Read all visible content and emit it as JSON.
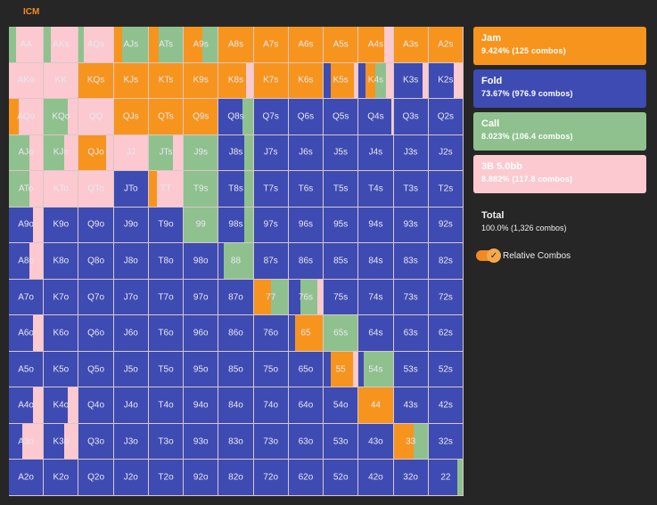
{
  "tab_label": "ICM",
  "colors": {
    "jam": "#f7941d",
    "fold": "#3e4bb2",
    "call": "#8fc18e",
    "three_bet": "#fbc9cf"
  },
  "legend": [
    {
      "key": "jam",
      "name": "Jam",
      "value": "9.424% (125 combos)"
    },
    {
      "key": "fold",
      "name": "Fold",
      "value": "73.67% (976.9 combos)"
    },
    {
      "key": "call",
      "name": "Call",
      "value": "8.023% (106.4 combos)"
    },
    {
      "key": "three_bet",
      "name": "3B 5.0bb",
      "value": "8.882% (117.8 combos)"
    }
  ],
  "total": {
    "name": "Total",
    "value": "100.0% (1,326 combos)"
  },
  "toggle": {
    "label": "Relative Combos",
    "checked": true
  },
  "hand_rows": [
    [
      "AA",
      "AKs",
      "AQs",
      "AJs",
      "ATs",
      "A9s",
      "A8s",
      "A7s",
      "A6s",
      "A5s",
      "A4s",
      "A3s",
      "A2s"
    ],
    [
      "AKo",
      "KK",
      "KQs",
      "KJs",
      "KTs",
      "K9s",
      "K8s",
      "K7s",
      "K6s",
      "K5s",
      "K4s",
      "K3s",
      "K2s"
    ],
    [
      "AQo",
      "KQo",
      "QQ",
      "QJs",
      "QTs",
      "Q9s",
      "Q8s",
      "Q7s",
      "Q6s",
      "Q5s",
      "Q4s",
      "Q3s",
      "Q2s"
    ],
    [
      "AJo",
      "KJo",
      "QJo",
      "JJ",
      "JTs",
      "J9s",
      "J8s",
      "J7s",
      "J6s",
      "J5s",
      "J4s",
      "J3s",
      "J2s"
    ],
    [
      "ATo",
      "KTo",
      "QTo",
      "JTo",
      "TT",
      "T9s",
      "T8s",
      "T7s",
      "T6s",
      "T5s",
      "T4s",
      "T3s",
      "T2s"
    ],
    [
      "A9o",
      "K9o",
      "Q9o",
      "J9o",
      "T9o",
      "99",
      "98s",
      "97s",
      "96s",
      "95s",
      "94s",
      "93s",
      "92s"
    ],
    [
      "A8o",
      "K8o",
      "Q8o",
      "J8o",
      "T8o",
      "98o",
      "88",
      "87s",
      "86s",
      "85s",
      "84s",
      "83s",
      "82s"
    ],
    [
      "A7o",
      "K7o",
      "Q7o",
      "J7o",
      "T7o",
      "97o",
      "87o",
      "77",
      "76s",
      "75s",
      "74s",
      "73s",
      "72s"
    ],
    [
      "A6o",
      "K6o",
      "Q6o",
      "J6o",
      "T6o",
      "96o",
      "86o",
      "76o",
      "65",
      "65s",
      "64s",
      "63s",
      "62s"
    ],
    [
      "A5o",
      "K5o",
      "Q5o",
      "J5o",
      "T5o",
      "95o",
      "85o",
      "75o",
      "65o",
      "55",
      "54s",
      "53s",
      "52s"
    ],
    [
      "A4o",
      "K4o",
      "Q4o",
      "J4o",
      "T4o",
      "94o",
      "84o",
      "74o",
      "64o",
      "54o",
      "44",
      "43s",
      "42s"
    ],
    [
      "A3o",
      "K3o",
      "Q3o",
      "J3o",
      "T3o",
      "93o",
      "83o",
      "73o",
      "63o",
      "53o",
      "43o",
      "33",
      "32s"
    ],
    [
      "A2o",
      "K2o",
      "Q2o",
      "J2o",
      "T2o",
      "92o",
      "82o",
      "72o",
      "62o",
      "52o",
      "42o",
      "32o",
      "22"
    ]
  ],
  "hand_mix": {
    "AA": {
      "call": 0.2,
      "three_bet": 0.8
    },
    "AKs": {
      "call": 0.2,
      "three_bet": 0.8
    },
    "AQs": {
      "call": 0.15,
      "three_bet": 0.85
    },
    "AJs": {
      "jam": 0.25,
      "call": 0.75
    },
    "ATs": {
      "jam": 0.3,
      "call": 0.7
    },
    "A9s": {
      "jam": 0.55,
      "call": 0.45
    },
    "A8s": {
      "jam": 1
    },
    "A7s": {
      "jam": 1
    },
    "A6s": {
      "jam": 1
    },
    "A5s": {
      "jam": 1
    },
    "A4s": {
      "jam": 0.75,
      "three_bet": 0.25
    },
    "A3s": {
      "jam": 1
    },
    "A2s": {
      "jam": 1
    },
    "AKo": {
      "three_bet": 1
    },
    "KK": {
      "three_bet": 1
    },
    "KQs": {
      "jam": 1
    },
    "KJs": {
      "jam": 1
    },
    "KTs": {
      "jam": 1
    },
    "K9s": {
      "jam": 1
    },
    "K8s": {
      "jam": 0.8,
      "three_bet": 0.2
    },
    "K7s": {
      "jam": 1
    },
    "K6s": {
      "jam": 1
    },
    "K5s": {
      "jam": 0.7,
      "fold": 0.2,
      "three_bet": 0.1
    },
    "K4s": {
      "fold": 0.2,
      "jam": 0.3,
      "call": 0.3,
      "three_bet": 0.2
    },
    "K3s": {
      "fold": 0.85,
      "three_bet": 0.15
    },
    "K2s": {
      "fold": 0.75,
      "three_bet": 0.25
    },
    "AQo": {
      "jam": 0.3,
      "three_bet": 0.7
    },
    "KQo": {
      "three_bet": 0.3,
      "call": 0.7
    },
    "QQ": {
      "three_bet": 1
    },
    "QJs": {
      "jam": 1
    },
    "QTs": {
      "jam": 1
    },
    "Q9s": {
      "jam": 1
    },
    "Q8s": {
      "fold": 0.7,
      "call": 0.3
    },
    "Q7s": {
      "fold": 1
    },
    "Q6s": {
      "fold": 1
    },
    "Q5s": {
      "fold": 1
    },
    "Q4s": {
      "fold": 0.95,
      "three_bet": 0.05
    },
    "Q3s": {
      "fold": 1
    },
    "Q2s": {
      "fold": 1
    },
    "AJo": {
      "call": 0.6,
      "three_bet": 0.4
    },
    "KJo": {
      "call": 0.6,
      "three_bet": 0.4
    },
    "QJo": {
      "jam": 0.8,
      "three_bet": 0.2
    },
    "JJ": {
      "three_bet": 1
    },
    "JTs": {
      "call": 0.7,
      "three_bet": 0.3
    },
    "J9s": {
      "call": 1
    },
    "J8s": {
      "fold": 0.75,
      "call": 0.25
    },
    "J7s": {
      "fold": 1
    },
    "J6s": {
      "fold": 1
    },
    "J5s": {
      "fold": 1
    },
    "J4s": {
      "fold": 1
    },
    "J3s": {
      "fold": 1
    },
    "J2s": {
      "fold": 1
    },
    "ATo": {
      "call": 0.6,
      "three_bet": 0.4
    },
    "KTo": {
      "three_bet": 1
    },
    "QTo": {
      "three_bet": 1
    },
    "JTo": {
      "fold": 1
    },
    "TT": {
      "jam": 0.25,
      "three_bet": 0.75
    },
    "T9s": {
      "call": 1
    },
    "T8s": {
      "fold": 0.75,
      "call": 0.25
    },
    "T7s": {
      "fold": 1
    },
    "T6s": {
      "fold": 1
    },
    "T5s": {
      "fold": 1
    },
    "T4s": {
      "fold": 1
    },
    "T3s": {
      "fold": 1
    },
    "T2s": {
      "fold": 1
    },
    "A9o": {
      "fold": 0.7,
      "three_bet": 0.3
    },
    "K9o": {
      "fold": 1
    },
    "Q9o": {
      "fold": 1
    },
    "J9o": {
      "fold": 1
    },
    "T9o": {
      "fold": 1
    },
    "99": {
      "call": 1
    },
    "98s": {
      "fold": 0.75,
      "call": 0.25
    },
    "97s": {
      "fold": 1
    },
    "96s": {
      "fold": 1
    },
    "95s": {
      "fold": 1
    },
    "94s": {
      "fold": 1
    },
    "93s": {
      "fold": 1
    },
    "92s": {
      "fold": 1
    },
    "A8o": {
      "fold": 0.6,
      "three_bet": 0.4
    },
    "K8o": {
      "fold": 1
    },
    "Q8o": {
      "fold": 1
    },
    "J8o": {
      "fold": 1
    },
    "T8o": {
      "fold": 1
    },
    "98o": {
      "fold": 1
    },
    "88": {
      "fold": 0.15,
      "call": 0.85
    },
    "87s": {
      "fold": 1
    },
    "86s": {
      "fold": 1
    },
    "85s": {
      "fold": 1
    },
    "84s": {
      "fold": 1
    },
    "83s": {
      "fold": 1
    },
    "82s": {
      "fold": 1
    },
    "A7o": {
      "fold": 1
    },
    "K7o": {
      "fold": 1
    },
    "Q7o": {
      "fold": 1
    },
    "J7o": {
      "fold": 1
    },
    "T7o": {
      "fold": 1
    },
    "97o": {
      "fold": 1
    },
    "87o": {
      "fold": 1
    },
    "77": {
      "jam": 0.5,
      "call": 0.5
    },
    "76s": {
      "fold": 0.35,
      "call": 0.5,
      "three_bet": 0.15
    },
    "75s": {
      "fold": 1
    },
    "74s": {
      "fold": 1
    },
    "73s": {
      "fold": 1
    },
    "72s": {
      "fold": 1
    },
    "A6o": {
      "fold": 0.7,
      "three_bet": 0.3
    },
    "K6o": {
      "fold": 1
    },
    "Q6o": {
      "fold": 1
    },
    "J6o": {
      "fold": 1
    },
    "T6o": {
      "fold": 1
    },
    "96o": {
      "fold": 1
    },
    "86o": {
      "fold": 1
    },
    "76o": {
      "fold": 1
    },
    "65": {
      "fold": 0.2,
      "jam": 0.8
    },
    "65s": {
      "call": 1
    },
    "64s": {
      "fold": 1
    },
    "63s": {
      "fold": 1
    },
    "62s": {
      "fold": 1
    },
    "A5o": {
      "fold": 1
    },
    "K5o": {
      "fold": 1
    },
    "Q5o": {
      "fold": 1
    },
    "J5o": {
      "fold": 1
    },
    "T5o": {
      "fold": 1
    },
    "95o": {
      "fold": 1
    },
    "85o": {
      "fold": 1
    },
    "75o": {
      "fold": 1
    },
    "65o": {
      "fold": 1
    },
    "55": {
      "fold": 0.2,
      "jam": 0.65,
      "three_bet": 0.15
    },
    "54s": {
      "fold": 0.15,
      "call": 0.85
    },
    "53s": {
      "fold": 1
    },
    "52s": {
      "fold": 1
    },
    "A4o": {
      "fold": 0.7,
      "three_bet": 0.3
    },
    "K4o": {
      "fold": 0.7,
      "three_bet": 0.3
    },
    "Q4o": {
      "fold": 1
    },
    "J4o": {
      "fold": 1
    },
    "T4o": {
      "fold": 1
    },
    "94o": {
      "fold": 1
    },
    "84o": {
      "fold": 1
    },
    "74o": {
      "fold": 1
    },
    "64o": {
      "fold": 1
    },
    "54o": {
      "fold": 1
    },
    "44": {
      "jam": 1
    },
    "43s": {
      "fold": 1
    },
    "42s": {
      "fold": 1
    },
    "A3o": {
      "fold": 0.4,
      "three_bet": 0.6
    },
    "K3o": {
      "fold": 0.6,
      "three_bet": 0.4
    },
    "Q3o": {
      "fold": 1
    },
    "J3o": {
      "fold": 1
    },
    "T3o": {
      "fold": 1
    },
    "93o": {
      "fold": 1
    },
    "83o": {
      "fold": 1
    },
    "73o": {
      "fold": 1
    },
    "63o": {
      "fold": 1
    },
    "53o": {
      "fold": 1
    },
    "43o": {
      "fold": 1
    },
    "33": {
      "jam": 0.6,
      "call": 0.4
    },
    "32s": {
      "fold": 1
    },
    "A2o": {
      "fold": 1
    },
    "K2o": {
      "fold": 1
    },
    "Q2o": {
      "fold": 1
    },
    "J2o": {
      "fold": 1
    },
    "T2o": {
      "fold": 1
    },
    "92o": {
      "fold": 1
    },
    "82o": {
      "fold": 1
    },
    "72o": {
      "fold": 1
    },
    "62o": {
      "fold": 1
    },
    "52o": {
      "fold": 1
    },
    "42o": {
      "fold": 1
    },
    "32o": {
      "fold": 1
    },
    "22": {
      "fold": 0.85,
      "call": 0.15
    }
  }
}
